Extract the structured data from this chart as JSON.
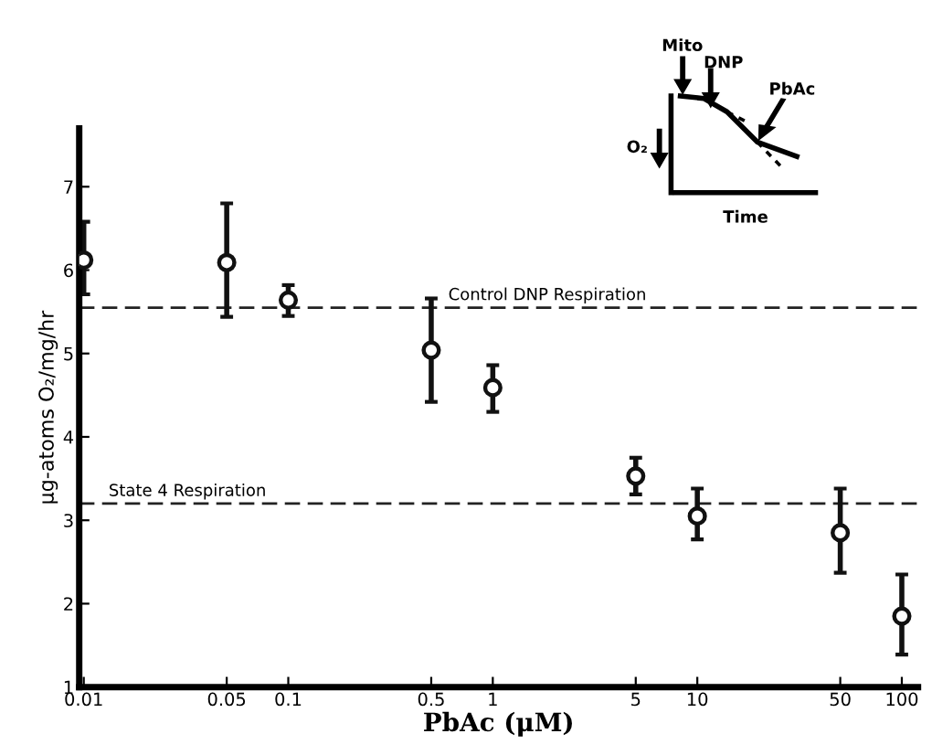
{
  "chart_data": {
    "type": "scatter",
    "xlabel": "PbAc (μM)",
    "ylabel": "μg-atoms O₂/mg/hr",
    "x": [
      0.01,
      0.05,
      0.1,
      0.5,
      1,
      5,
      10,
      50,
      100
    ],
    "values": [
      6.12,
      6.09,
      5.64,
      5.04,
      4.59,
      3.53,
      3.05,
      2.85,
      1.85
    ],
    "errors": [
      [
        5.71,
        6.58
      ],
      [
        5.44,
        6.8
      ],
      [
        5.45,
        5.82
      ],
      [
        4.42,
        5.66
      ],
      [
        4.3,
        4.86
      ],
      [
        3.31,
        3.75
      ],
      [
        2.77,
        3.38
      ],
      [
        2.37,
        3.38
      ],
      [
        1.39,
        2.35
      ]
    ],
    "color": "#111111",
    "marker": "circle",
    "log": "x",
    "xlim": [
      0.0095,
      120
    ],
    "ylim": [
      1,
      7.7
    ],
    "xticks": [
      0.01,
      0.05,
      0.1,
      0.5,
      1,
      5,
      10,
      50,
      100
    ],
    "yticks": [
      1,
      2,
      3,
      4,
      5,
      6,
      7
    ],
    "grid": false,
    "legend": false,
    "ref_lines": [
      {
        "axis": "y",
        "value": 5.55,
        "label": "Control DNP Respiration",
        "line_style": "dashed"
      },
      {
        "axis": "y",
        "value": 3.2,
        "label": "State 4 Respiration",
        "line_style": "dashed"
      }
    ],
    "annotations": [
      "Mito",
      "DNP",
      "PbAc",
      "O₂",
      "Time"
    ]
  }
}
